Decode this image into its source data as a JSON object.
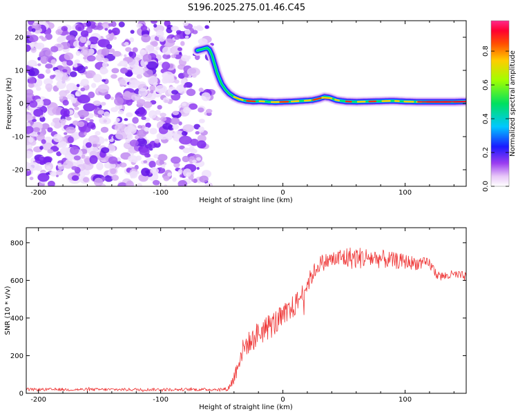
{
  "title": "S196.2025.275.01.46.C45",
  "chart_data": [
    {
      "type": "heatmap",
      "xlabel": "Height of straight line (km)",
      "ylabel": "Frequency (Hz)",
      "xlim": [
        -210,
        150
      ],
      "ylim": [
        -25,
        25
      ],
      "xticks": [
        -200,
        -100,
        0,
        100
      ],
      "yticks": [
        -20,
        -10,
        0,
        10,
        20
      ],
      "ridge": {
        "x": [
          -70,
          -68,
          -65,
          -62,
          -60,
          -58,
          -56,
          -54,
          -52,
          -50,
          -47,
          -44,
          -40,
          -36,
          -30,
          -24,
          -18,
          -12,
          -6,
          0,
          8,
          16,
          24,
          30,
          34,
          38,
          44,
          52,
          60,
          70,
          80,
          90,
          100,
          110,
          120,
          130,
          140,
          150
        ],
        "y": [
          16,
          16.2,
          16.5,
          16.8,
          16.2,
          14.5,
          12.0,
          9.5,
          7.5,
          5.8,
          4.2,
          3.0,
          2.0,
          1.3,
          0.8,
          0.6,
          0.7,
          0.5,
          0.4,
          0.5,
          0.6,
          0.8,
          1.0,
          1.5,
          2.0,
          1.8,
          1.0,
          0.6,
          0.5,
          0.6,
          0.7,
          0.8,
          0.6,
          0.5,
          0.5,
          0.5,
          0.5,
          0.6
        ]
      },
      "noise_region_x": [
        -210,
        -60
      ],
      "colorbar": {
        "label": "Normalized spectral amplitude",
        "ticks": [
          "0.0",
          "0.2",
          "0.4",
          "0.6",
          "0.8"
        ],
        "tick_values": [
          0,
          0.2,
          0.4,
          0.6,
          0.8
        ],
        "range": [
          0,
          0.98
        ]
      }
    },
    {
      "type": "line",
      "xlabel": "Height of straight line (km)",
      "ylabel": "SNR (10 * v/v)",
      "xlim": [
        -210,
        150
      ],
      "ylim": [
        0,
        880
      ],
      "xticks": [
        -200,
        -100,
        0,
        100
      ],
      "yticks": [
        0,
        200,
        400,
        600,
        800
      ],
      "series": [
        {
          "name": "SNR",
          "color": "#ee3333",
          "x": [
            -210,
            -180,
            -150,
            -120,
            -90,
            -60,
            -45,
            -40,
            -35,
            -30,
            -25,
            -20,
            -15,
            -10,
            -5,
            0,
            5,
            10,
            15,
            20,
            25,
            30,
            40,
            50,
            60,
            70,
            80,
            90,
            100,
            110,
            120,
            125,
            130,
            140,
            150
          ],
          "y": [
            20,
            20,
            20,
            20,
            20,
            20,
            22,
            80,
            200,
            260,
            280,
            320,
            340,
            360,
            380,
            400,
            430,
            470,
            520,
            580,
            640,
            690,
            710,
            720,
            720,
            720,
            715,
            705,
            700,
            690,
            690,
            640,
            620,
            630,
            620
          ],
          "noise_amp": [
            8,
            8,
            8,
            8,
            8,
            8,
            10,
            40,
            60,
            60,
            60,
            70,
            70,
            70,
            70,
            70,
            70,
            60,
            50,
            50,
            45,
            45,
            45,
            60,
            60,
            55,
            50,
            45,
            40,
            35,
            30,
            30,
            25,
            25,
            25
          ]
        }
      ]
    }
  ]
}
